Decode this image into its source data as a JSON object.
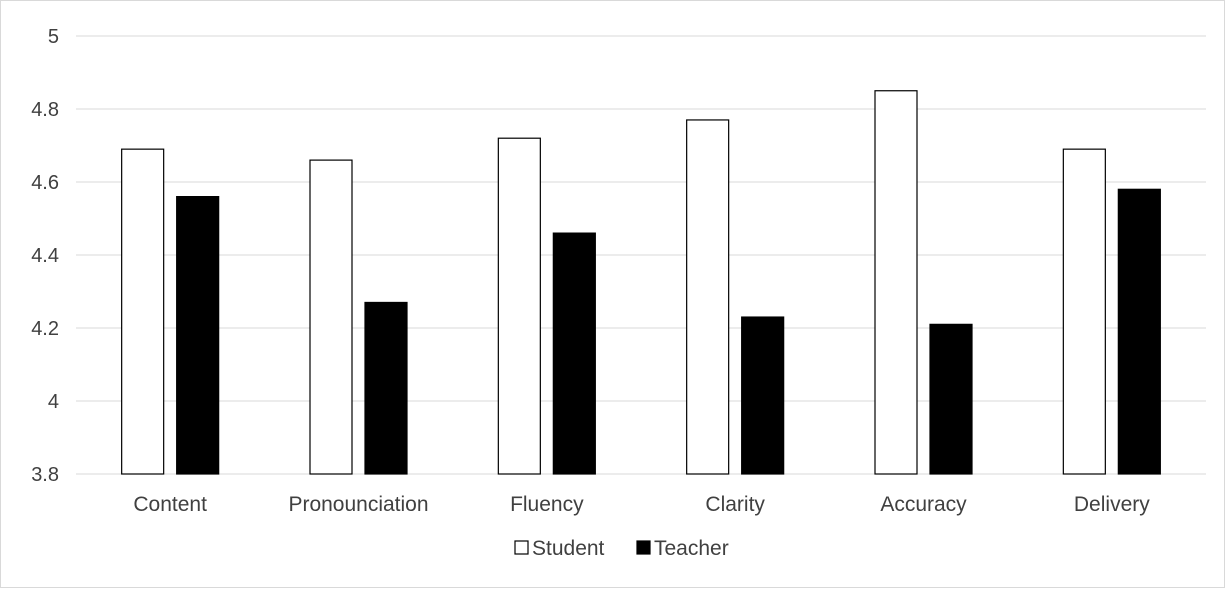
{
  "chart_data": {
    "type": "bar",
    "categories": [
      "Content",
      "Pronounciation",
      "Fluency",
      "Clarity",
      "Accuracy",
      "Delivery"
    ],
    "series": [
      {
        "name": "Student",
        "values": [
          4.69,
          4.66,
          4.72,
          4.77,
          4.85,
          4.69
        ],
        "fill": "#ffffff",
        "stroke": "#000000"
      },
      {
        "name": "Teacher",
        "values": [
          4.56,
          4.27,
          4.46,
          4.23,
          4.21,
          4.58
        ],
        "fill": "#000000",
        "stroke": "#000000"
      }
    ],
    "ylim": [
      3.8,
      5
    ],
    "yticks": [
      "3.8",
      "4",
      "4.2",
      "4.4",
      "4.6",
      "4.8",
      "5"
    ],
    "grid": true,
    "legend_position": "bottom",
    "title": "",
    "xlabel": "",
    "ylabel": "",
    "colors": {
      "gridline": "#d9d9d9",
      "axis_text": "#404040",
      "border": "#d9d9d9"
    }
  }
}
